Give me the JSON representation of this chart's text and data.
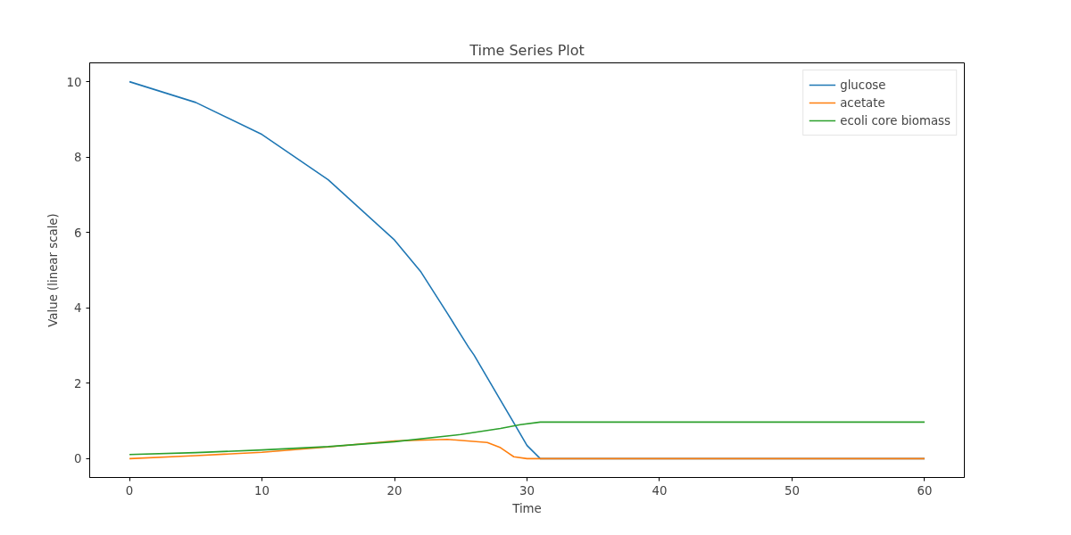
{
  "chart_data": {
    "type": "line",
    "title": "Time Series Plot",
    "xlabel": "Time",
    "ylabel": "Value (linear scale)",
    "xlim": [
      -3,
      63
    ],
    "ylim": [
      -0.5,
      10.5
    ],
    "xticks": [
      0,
      10,
      20,
      30,
      40,
      50,
      60
    ],
    "yticks": [
      0,
      2,
      4,
      6,
      8,
      10
    ],
    "grid": false,
    "legend": "top right",
    "series": [
      {
        "name": "glucose",
        "color": "#1f77b4",
        "x": [
          0,
          5,
          10,
          15,
          20,
          22,
          24,
          25.6,
          26,
          28,
          29,
          30,
          31,
          60
        ],
        "values": [
          10,
          9.45,
          8.6,
          7.4,
          5.8,
          4.95,
          3.85,
          2.95,
          2.75,
          1.55,
          0.95,
          0.35,
          0,
          0
        ]
      },
      {
        "name": "acetate",
        "color": "#ff7f0e",
        "x": [
          0,
          5,
          10,
          15,
          20,
          24,
          27,
          28,
          29,
          30,
          60
        ],
        "values": [
          0,
          0.08,
          0.17,
          0.31,
          0.47,
          0.51,
          0.43,
          0.29,
          0.05,
          0,
          0
        ]
      },
      {
        "name": "ecoli core biomass",
        "color": "#2ca02c",
        "x": [
          0,
          5,
          10,
          15,
          20,
          25,
          28,
          29.5,
          31,
          60
        ],
        "values": [
          0.11,
          0.16,
          0.23,
          0.32,
          0.45,
          0.64,
          0.8,
          0.9,
          0.97,
          0.97
        ]
      }
    ]
  }
}
